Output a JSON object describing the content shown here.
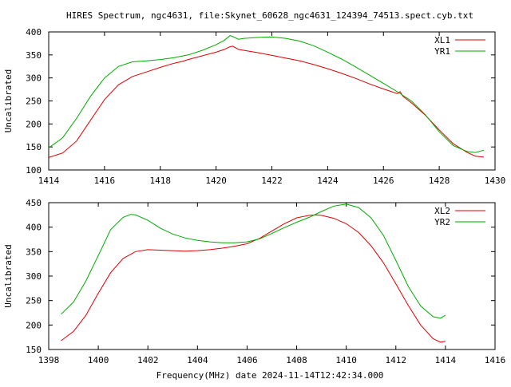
{
  "title": "HIRES Spectrum, ngc4631, file:Skynet_60628_ngc4631_124394_74513.spect.cyb.txt",
  "xlabel_bottom": "Frequency(MHz) date 2024-11-14T12:42:34.000",
  "colors": {
    "red": "#dd0000",
    "green": "#00aa00",
    "axis": "#000000"
  },
  "chart_data": [
    {
      "type": "line",
      "ylabel": "Uncalibrated",
      "xlim": [
        1414,
        1430
      ],
      "ylim": [
        100,
        400
      ],
      "xticks": [
        1414,
        1416,
        1418,
        1420,
        1422,
        1424,
        1426,
        1428,
        1430
      ],
      "yticks": [
        100,
        150,
        200,
        250,
        300,
        350,
        400
      ],
      "grid": false,
      "legend_position": "top-right",
      "series": [
        {
          "name": "XL1",
          "color": "#dd0000",
          "x": [
            1414.0,
            1414.5,
            1415.0,
            1415.5,
            1416.0,
            1416.5,
            1417.0,
            1417.5,
            1418.0,
            1418.5,
            1418.8,
            1419.0,
            1419.5,
            1420.0,
            1420.3,
            1420.5,
            1420.6,
            1420.8,
            1421.0,
            1421.5,
            1422.0,
            1422.5,
            1423.0,
            1423.5,
            1424.0,
            1424.5,
            1425.0,
            1425.5,
            1426.0,
            1426.5,
            1426.6,
            1426.7,
            1427.0,
            1427.5,
            1428.0,
            1428.5,
            1429.0,
            1429.3,
            1429.6
          ],
          "y": [
            127,
            137,
            163,
            208,
            253,
            285,
            303,
            313,
            323,
            332,
            336,
            340,
            348,
            356,
            362,
            368,
            369,
            362,
            360,
            355,
            349,
            343,
            337,
            329,
            320,
            310,
            299,
            287,
            276,
            266,
            270,
            260,
            246,
            219,
            187,
            157,
            138,
            130,
            128
          ]
        },
        {
          "name": "YR1",
          "color": "#00aa00",
          "x": [
            1414.0,
            1414.5,
            1415.0,
            1415.5,
            1416.0,
            1416.5,
            1417.0,
            1417.5,
            1418.0,
            1418.5,
            1419.0,
            1419.5,
            1420.0,
            1420.3,
            1420.5,
            1420.6,
            1420.8,
            1421.0,
            1421.5,
            1422.0,
            1422.5,
            1423.0,
            1423.5,
            1424.0,
            1424.5,
            1425.0,
            1425.5,
            1426.0,
            1426.5,
            1427.0,
            1427.5,
            1428.0,
            1428.5,
            1429.0,
            1429.3,
            1429.6
          ],
          "y": [
            148,
            170,
            212,
            260,
            300,
            325,
            335,
            337,
            340,
            344,
            350,
            360,
            372,
            382,
            392,
            390,
            384,
            386,
            388,
            389,
            386,
            380,
            370,
            356,
            341,
            324,
            306,
            288,
            270,
            250,
            220,
            183,
            153,
            140,
            138,
            143
          ]
        }
      ]
    },
    {
      "type": "line",
      "ylabel": "Uncalibrated",
      "xlim": [
        1398,
        1416
      ],
      "ylim": [
        150,
        450
      ],
      "xticks": [
        1398,
        1400,
        1402,
        1404,
        1406,
        1408,
        1410,
        1412,
        1414,
        1416
      ],
      "yticks": [
        150,
        200,
        250,
        300,
        350,
        400,
        450
      ],
      "grid": false,
      "legend_position": "top-right",
      "series": [
        {
          "name": "XL2",
          "color": "#dd0000",
          "x": [
            1398.5,
            1399.0,
            1399.5,
            1400.0,
            1400.5,
            1401.0,
            1401.5,
            1402.0,
            1402.5,
            1403.0,
            1403.5,
            1404.0,
            1404.5,
            1405.0,
            1405.5,
            1406.0,
            1406.5,
            1407.0,
            1407.5,
            1408.0,
            1408.5,
            1408.8,
            1409.0,
            1409.5,
            1410.0,
            1410.5,
            1411.0,
            1411.5,
            1412.0,
            1412.5,
            1413.0,
            1413.5,
            1413.8,
            1414.0
          ],
          "y": [
            168,
            187,
            220,
            265,
            307,
            336,
            350,
            354,
            353,
            352,
            351,
            352,
            354,
            357,
            361,
            366,
            377,
            392,
            407,
            419,
            424,
            425,
            424,
            418,
            407,
            389,
            362,
            327,
            284,
            240,
            200,
            172,
            165,
            167
          ]
        },
        {
          "name": "YR2",
          "color": "#00aa00",
          "x": [
            1398.5,
            1399.0,
            1399.5,
            1400.0,
            1400.5,
            1401.0,
            1401.3,
            1401.5,
            1402.0,
            1402.5,
            1403.0,
            1403.5,
            1404.0,
            1404.5,
            1405.0,
            1405.5,
            1406.0,
            1406.5,
            1407.0,
            1407.5,
            1408.0,
            1408.5,
            1409.0,
            1409.5,
            1410.0,
            1410.5,
            1411.0,
            1411.5,
            1412.0,
            1412.5,
            1413.0,
            1413.5,
            1413.8,
            1414.0
          ],
          "y": [
            222,
            247,
            290,
            342,
            395,
            420,
            426,
            425,
            414,
            398,
            386,
            378,
            373,
            370,
            368,
            368,
            370,
            376,
            387,
            399,
            410,
            420,
            432,
            443,
            447,
            440,
            419,
            383,
            332,
            279,
            239,
            217,
            214,
            220
          ]
        }
      ]
    }
  ]
}
